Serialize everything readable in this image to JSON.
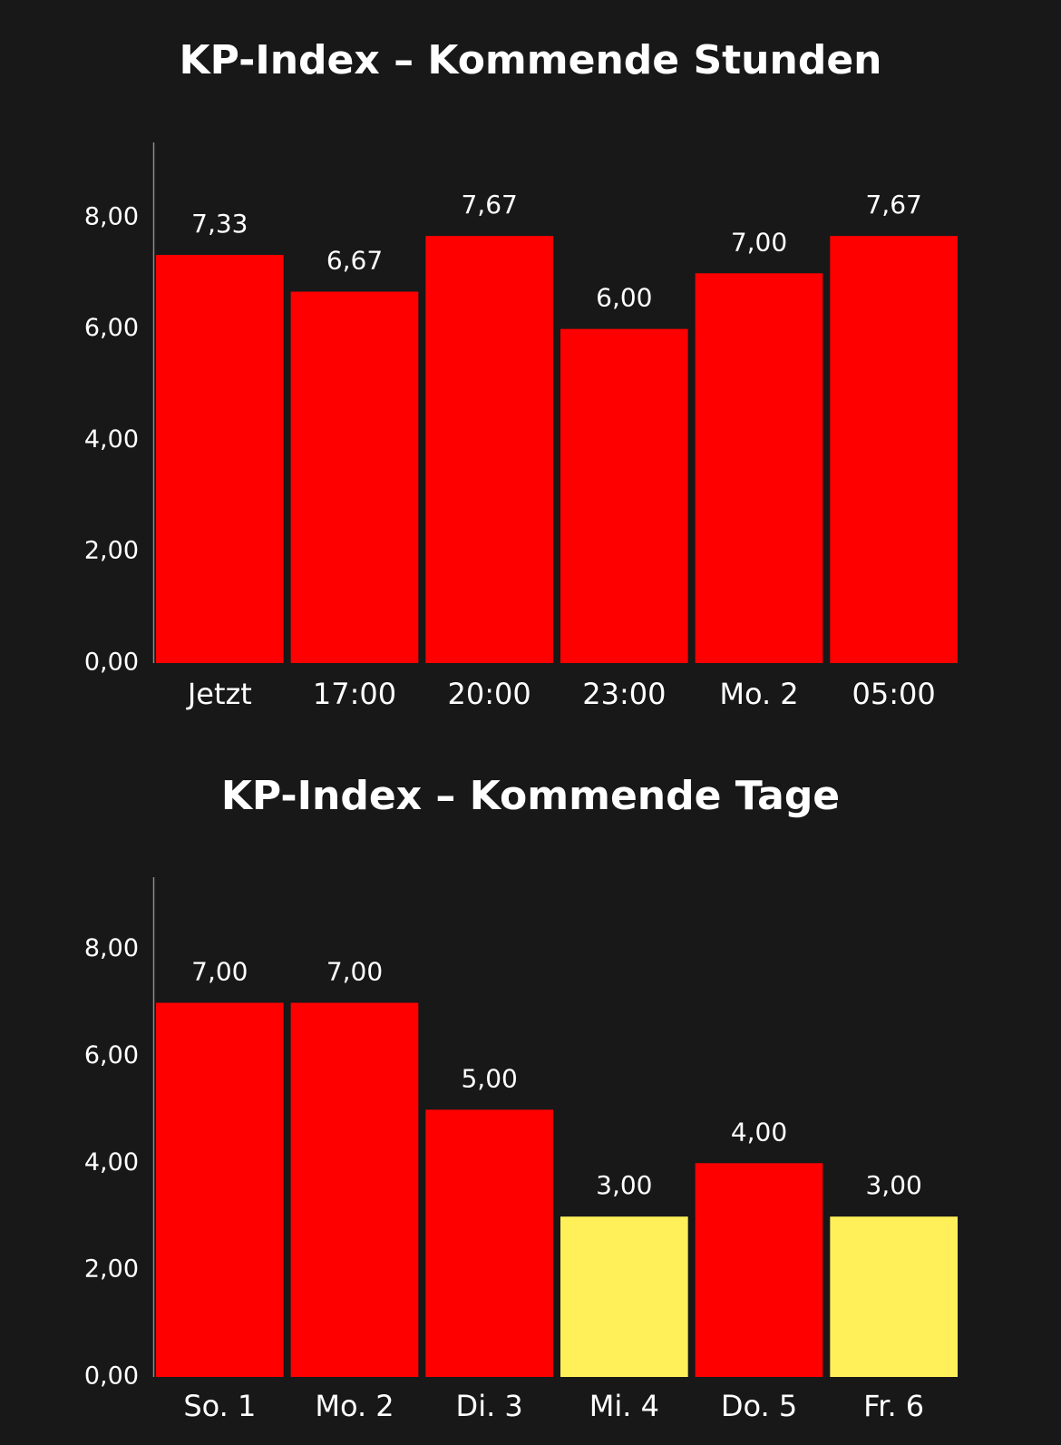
{
  "chart_data": [
    {
      "type": "bar",
      "title": "KP-Index – Kommende Stunden",
      "categories": [
        "Jetzt",
        "17:00",
        "20:00",
        "23:00",
        "Mo. 2",
        "05:00"
      ],
      "values": [
        7.33,
        6.67,
        7.67,
        6,
        7,
        7.67
      ],
      "value_labels": [
        "7,33",
        "6,67",
        "7,67",
        "6,00",
        "7,00",
        "7,67"
      ],
      "color": "#ff0000",
      "ylim": [
        0,
        9.35
      ],
      "yticks": [
        {
          "value": 0,
          "label": "0,00"
        },
        {
          "value": 2,
          "label": "2,00"
        },
        {
          "value": 4,
          "label": "4,00"
        },
        {
          "value": 6,
          "label": "6,00"
        },
        {
          "value": 8,
          "label": "8,00"
        }
      ]
    },
    {
      "type": "bar",
      "title": "KP-Index – Kommende Tage",
      "categories": [
        "So. 1",
        "Mo. 2",
        "Di. 3",
        "Mi. 4",
        "Do. 5",
        "Fr. 6"
      ],
      "values": [
        7,
        7,
        5,
        3,
        4,
        3
      ],
      "value_labels": [
        "7,00",
        "7,00",
        "5,00",
        "3,00",
        "4,00",
        "3,00"
      ],
      "colors": [
        "#ff0000",
        "#ff0000",
        "#ff0000",
        "#fff05a",
        "#ff0000",
        "#fff05a"
      ],
      "ylim": [
        0,
        9.35
      ],
      "yticks": [
        {
          "value": 0,
          "label": "0,00"
        },
        {
          "value": 2,
          "label": "2,00"
        },
        {
          "value": 4,
          "label": "4,00"
        },
        {
          "value": 6,
          "label": "6,00"
        },
        {
          "value": 8,
          "label": "8,00"
        }
      ]
    }
  ]
}
